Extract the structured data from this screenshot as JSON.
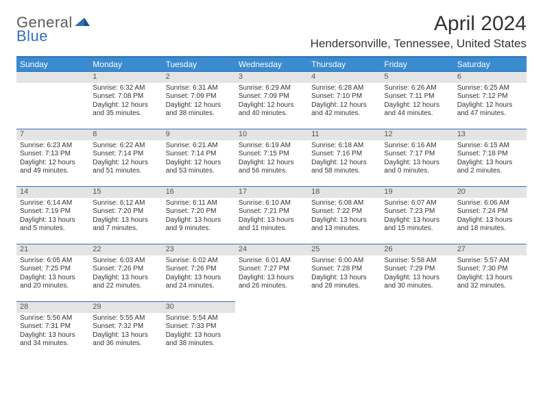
{
  "logo": {
    "part1": "General",
    "part2": "Blue"
  },
  "title": "April 2024",
  "location": "Hendersonville, Tennessee, United States",
  "colors": {
    "header_bg": "#3a8bd0",
    "header_border": "#2d6fb5",
    "daynum_bg": "#e4e4e4",
    "text": "#333333"
  },
  "weekdays": [
    "Sunday",
    "Monday",
    "Tuesday",
    "Wednesday",
    "Thursday",
    "Friday",
    "Saturday"
  ],
  "weeks": [
    [
      null,
      {
        "n": "1",
        "sr": "Sunrise: 6:32 AM",
        "ss": "Sunset: 7:08 PM",
        "d1": "Daylight: 12 hours",
        "d2": "and 35 minutes."
      },
      {
        "n": "2",
        "sr": "Sunrise: 6:31 AM",
        "ss": "Sunset: 7:09 PM",
        "d1": "Daylight: 12 hours",
        "d2": "and 38 minutes."
      },
      {
        "n": "3",
        "sr": "Sunrise: 6:29 AM",
        "ss": "Sunset: 7:09 PM",
        "d1": "Daylight: 12 hours",
        "d2": "and 40 minutes."
      },
      {
        "n": "4",
        "sr": "Sunrise: 6:28 AM",
        "ss": "Sunset: 7:10 PM",
        "d1": "Daylight: 12 hours",
        "d2": "and 42 minutes."
      },
      {
        "n": "5",
        "sr": "Sunrise: 6:26 AM",
        "ss": "Sunset: 7:11 PM",
        "d1": "Daylight: 12 hours",
        "d2": "and 44 minutes."
      },
      {
        "n": "6",
        "sr": "Sunrise: 6:25 AM",
        "ss": "Sunset: 7:12 PM",
        "d1": "Daylight: 12 hours",
        "d2": "and 47 minutes."
      }
    ],
    [
      {
        "n": "7",
        "sr": "Sunrise: 6:23 AM",
        "ss": "Sunset: 7:13 PM",
        "d1": "Daylight: 12 hours",
        "d2": "and 49 minutes."
      },
      {
        "n": "8",
        "sr": "Sunrise: 6:22 AM",
        "ss": "Sunset: 7:14 PM",
        "d1": "Daylight: 12 hours",
        "d2": "and 51 minutes."
      },
      {
        "n": "9",
        "sr": "Sunrise: 6:21 AM",
        "ss": "Sunset: 7:14 PM",
        "d1": "Daylight: 12 hours",
        "d2": "and 53 minutes."
      },
      {
        "n": "10",
        "sr": "Sunrise: 6:19 AM",
        "ss": "Sunset: 7:15 PM",
        "d1": "Daylight: 12 hours",
        "d2": "and 56 minutes."
      },
      {
        "n": "11",
        "sr": "Sunrise: 6:18 AM",
        "ss": "Sunset: 7:16 PM",
        "d1": "Daylight: 12 hours",
        "d2": "and 58 minutes."
      },
      {
        "n": "12",
        "sr": "Sunrise: 6:16 AM",
        "ss": "Sunset: 7:17 PM",
        "d1": "Daylight: 13 hours",
        "d2": "and 0 minutes."
      },
      {
        "n": "13",
        "sr": "Sunrise: 6:15 AM",
        "ss": "Sunset: 7:18 PM",
        "d1": "Daylight: 13 hours",
        "d2": "and 2 minutes."
      }
    ],
    [
      {
        "n": "14",
        "sr": "Sunrise: 6:14 AM",
        "ss": "Sunset: 7:19 PM",
        "d1": "Daylight: 13 hours",
        "d2": "and 5 minutes."
      },
      {
        "n": "15",
        "sr": "Sunrise: 6:12 AM",
        "ss": "Sunset: 7:20 PM",
        "d1": "Daylight: 13 hours",
        "d2": "and 7 minutes."
      },
      {
        "n": "16",
        "sr": "Sunrise: 6:11 AM",
        "ss": "Sunset: 7:20 PM",
        "d1": "Daylight: 13 hours",
        "d2": "and 9 minutes."
      },
      {
        "n": "17",
        "sr": "Sunrise: 6:10 AM",
        "ss": "Sunset: 7:21 PM",
        "d1": "Daylight: 13 hours",
        "d2": "and 11 minutes."
      },
      {
        "n": "18",
        "sr": "Sunrise: 6:08 AM",
        "ss": "Sunset: 7:22 PM",
        "d1": "Daylight: 13 hours",
        "d2": "and 13 minutes."
      },
      {
        "n": "19",
        "sr": "Sunrise: 6:07 AM",
        "ss": "Sunset: 7:23 PM",
        "d1": "Daylight: 13 hours",
        "d2": "and 15 minutes."
      },
      {
        "n": "20",
        "sr": "Sunrise: 6:06 AM",
        "ss": "Sunset: 7:24 PM",
        "d1": "Daylight: 13 hours",
        "d2": "and 18 minutes."
      }
    ],
    [
      {
        "n": "21",
        "sr": "Sunrise: 6:05 AM",
        "ss": "Sunset: 7:25 PM",
        "d1": "Daylight: 13 hours",
        "d2": "and 20 minutes."
      },
      {
        "n": "22",
        "sr": "Sunrise: 6:03 AM",
        "ss": "Sunset: 7:26 PM",
        "d1": "Daylight: 13 hours",
        "d2": "and 22 minutes."
      },
      {
        "n": "23",
        "sr": "Sunrise: 6:02 AM",
        "ss": "Sunset: 7:26 PM",
        "d1": "Daylight: 13 hours",
        "d2": "and 24 minutes."
      },
      {
        "n": "24",
        "sr": "Sunrise: 6:01 AM",
        "ss": "Sunset: 7:27 PM",
        "d1": "Daylight: 13 hours",
        "d2": "and 26 minutes."
      },
      {
        "n": "25",
        "sr": "Sunrise: 6:00 AM",
        "ss": "Sunset: 7:28 PM",
        "d1": "Daylight: 13 hours",
        "d2": "and 28 minutes."
      },
      {
        "n": "26",
        "sr": "Sunrise: 5:58 AM",
        "ss": "Sunset: 7:29 PM",
        "d1": "Daylight: 13 hours",
        "d2": "and 30 minutes."
      },
      {
        "n": "27",
        "sr": "Sunrise: 5:57 AM",
        "ss": "Sunset: 7:30 PM",
        "d1": "Daylight: 13 hours",
        "d2": "and 32 minutes."
      }
    ],
    [
      {
        "n": "28",
        "sr": "Sunrise: 5:56 AM",
        "ss": "Sunset: 7:31 PM",
        "d1": "Daylight: 13 hours",
        "d2": "and 34 minutes."
      },
      {
        "n": "29",
        "sr": "Sunrise: 5:55 AM",
        "ss": "Sunset: 7:32 PM",
        "d1": "Daylight: 13 hours",
        "d2": "and 36 minutes."
      },
      {
        "n": "30",
        "sr": "Sunrise: 5:54 AM",
        "ss": "Sunset: 7:33 PM",
        "d1": "Daylight: 13 hours",
        "d2": "and 38 minutes."
      },
      null,
      null,
      null,
      null
    ]
  ]
}
